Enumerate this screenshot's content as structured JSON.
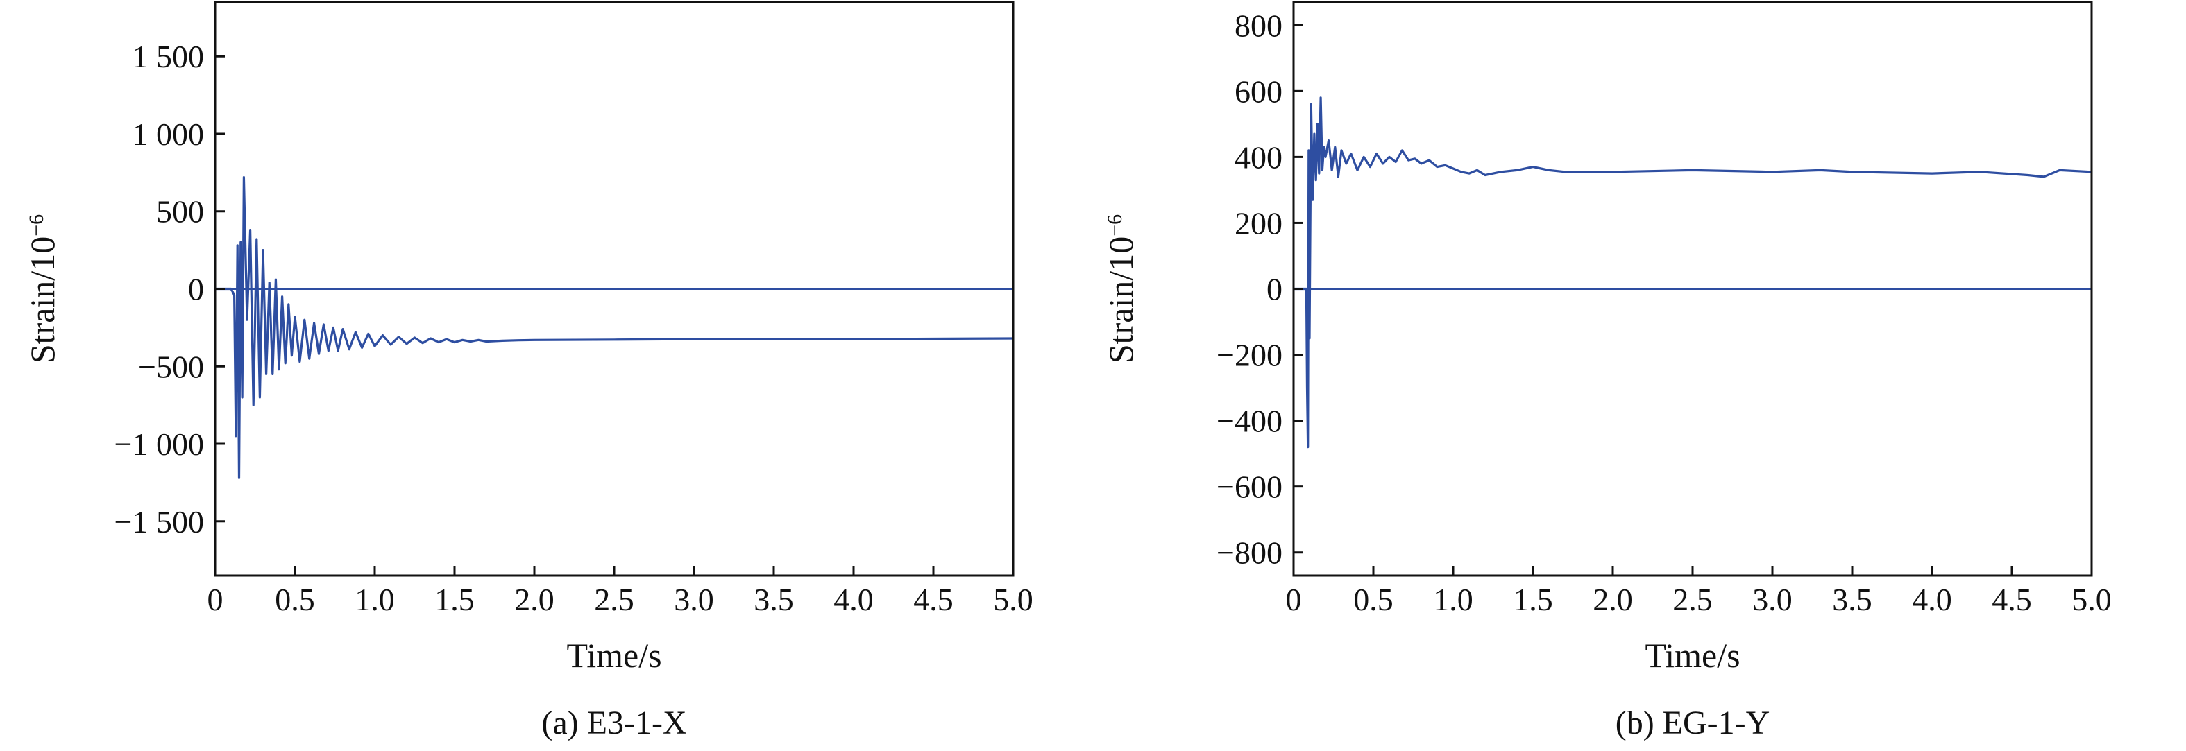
{
  "colors": {
    "series": "#2e4ea1",
    "axis": "#111111"
  },
  "chart_data": [
    {
      "type": "line",
      "caption": "(a) E3-1-X",
      "xlabel": "Time/s",
      "ylabel_main": "Strain/10",
      "ylabel_sup": "−6",
      "xlim": [
        0,
        5.0
      ],
      "ylim": [
        -1850,
        1850
      ],
      "xticks": [
        0,
        0.5,
        1.0,
        1.5,
        2.0,
        2.5,
        3.0,
        3.5,
        4.0,
        4.5,
        5.0
      ],
      "xtick_labels": [
        "0",
        "0.5",
        "1.0",
        "1.5",
        "2.0",
        "2.5",
        "3.0",
        "3.5",
        "4.0",
        "4.5",
        "5.0"
      ],
      "yticks": [
        -1500,
        -1000,
        -500,
        0,
        500,
        1000,
        1500
      ],
      "ytick_labels": [
        "−1 500",
        "−1 000",
        "−500",
        "0",
        "500",
        "1 000",
        "1 500"
      ],
      "zero_line": 0,
      "series": [
        {
          "x": [
            0,
            0.1,
            0.12,
            0.13,
            0.14,
            0.15,
            0.16,
            0.17,
            0.18,
            0.2,
            0.22,
            0.24,
            0.26,
            0.28,
            0.3,
            0.32,
            0.34,
            0.36,
            0.38,
            0.4,
            0.42,
            0.44,
            0.46,
            0.48,
            0.5,
            0.53,
            0.56,
            0.59,
            0.62,
            0.65,
            0.68,
            0.71,
            0.74,
            0.77,
            0.8,
            0.84,
            0.88,
            0.92,
            0.96,
            1.0,
            1.05,
            1.1,
            1.15,
            1.2,
            1.25,
            1.3,
            1.35,
            1.4,
            1.45,
            1.5,
            1.55,
            1.6,
            1.65,
            1.7,
            1.8,
            1.9,
            2.0,
            2.5,
            3.0,
            3.5,
            4.0,
            4.5,
            5.0
          ],
          "y": [
            0,
            0,
            -40,
            -950,
            280,
            -1220,
            300,
            -700,
            720,
            -200,
            380,
            -750,
            320,
            -700,
            250,
            -550,
            40,
            -550,
            60,
            -520,
            -50,
            -480,
            -100,
            -430,
            -180,
            -470,
            -200,
            -450,
            -220,
            -420,
            -230,
            -400,
            -250,
            -400,
            -260,
            -390,
            -280,
            -380,
            -290,
            -370,
            -300,
            -360,
            -310,
            -355,
            -315,
            -350,
            -320,
            -345,
            -325,
            -345,
            -330,
            -340,
            -330,
            -340,
            -335,
            -332,
            -330,
            -328,
            -325,
            -325,
            -325,
            -322,
            -320
          ]
        }
      ]
    },
    {
      "type": "line",
      "caption": "(b) EG-1-Y",
      "xlabel": "Time/s",
      "ylabel_main": "Strain/10",
      "ylabel_sup": "−6",
      "xlim": [
        0,
        5.0
      ],
      "ylim": [
        -870,
        870
      ],
      "xticks": [
        0,
        0.5,
        1.0,
        1.5,
        2.0,
        2.5,
        3.0,
        3.5,
        4.0,
        4.5,
        5.0
      ],
      "xtick_labels": [
        "0",
        "0.5",
        "1.0",
        "1.5",
        "2.0",
        "2.5",
        "3.0",
        "3.5",
        "4.0",
        "4.5",
        "5.0"
      ],
      "yticks": [
        -800,
        -600,
        -400,
        -200,
        0,
        200,
        400,
        600,
        800
      ],
      "ytick_labels": [
        "−800",
        "−600",
        "−400",
        "−200",
        "0",
        "200",
        "400",
        "600",
        "800"
      ],
      "zero_line": 0,
      "series": [
        {
          "x": [
            0,
            0.08,
            0.085,
            0.09,
            0.095,
            0.1,
            0.11,
            0.12,
            0.13,
            0.14,
            0.15,
            0.16,
            0.17,
            0.18,
            0.19,
            0.2,
            0.22,
            0.24,
            0.26,
            0.28,
            0.3,
            0.33,
            0.36,
            0.4,
            0.44,
            0.48,
            0.52,
            0.56,
            0.6,
            0.64,
            0.68,
            0.72,
            0.76,
            0.8,
            0.85,
            0.9,
            0.95,
            1.0,
            1.05,
            1.1,
            1.15,
            1.2,
            1.3,
            1.4,
            1.5,
            1.55,
            1.6,
            1.7,
            1.8,
            2.0,
            2.5,
            3.0,
            3.3,
            3.5,
            4.0,
            4.3,
            4.6,
            4.7,
            4.8,
            5.0
          ],
          "y": [
            0,
            0,
            -300,
            -480,
            420,
            -150,
            560,
            270,
            470,
            330,
            500,
            350,
            580,
            360,
            430,
            400,
            450,
            360,
            430,
            340,
            420,
            380,
            410,
            360,
            400,
            370,
            410,
            380,
            400,
            385,
            420,
            390,
            395,
            380,
            390,
            370,
            375,
            365,
            355,
            350,
            360,
            345,
            355,
            360,
            370,
            365,
            360,
            355,
            355,
            355,
            360,
            355,
            360,
            355,
            350,
            355,
            345,
            340,
            360,
            355
          ]
        }
      ]
    }
  ]
}
